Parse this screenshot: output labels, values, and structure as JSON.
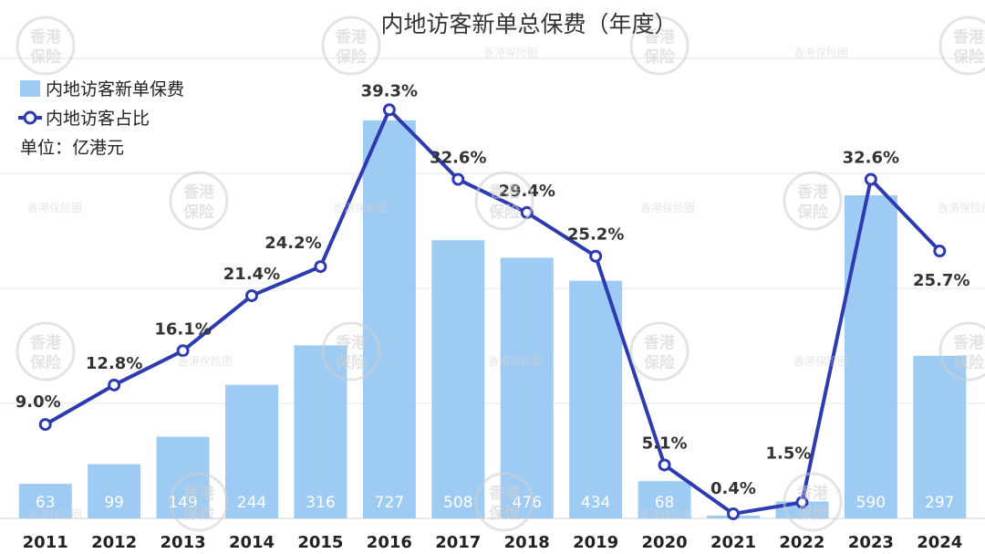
{
  "chart_data": {
    "type": "bar",
    "title": "内地访客新单总保费（年度）",
    "unit_label": "单位：亿港元",
    "categories": [
      "2011",
      "2012",
      "2013",
      "2014",
      "2015",
      "2016",
      "2017",
      "2018",
      "2019",
      "2020",
      "2021",
      "2022",
      "2023",
      "2024"
    ],
    "series": [
      {
        "name": "内地访客新单保费",
        "type": "bar",
        "values": [
          63,
          99,
          149,
          244,
          316,
          727,
          508,
          476,
          434,
          68,
          5,
          31,
          590,
          297
        ],
        "value_labels": [
          "63",
          "99",
          "149",
          "244",
          "316",
          "727",
          "508",
          "476",
          "434",
          "68",
          "",
          "",
          "590",
          "297"
        ],
        "color": "#9ecbf3"
      },
      {
        "name": "内地访客占比",
        "type": "line",
        "values": [
          9.0,
          12.8,
          16.1,
          21.4,
          24.2,
          39.3,
          32.6,
          29.4,
          25.2,
          5.1,
          0.4,
          1.5,
          32.6,
          25.7
        ],
        "value_labels": [
          "9.0%",
          "12.8%",
          "16.1%",
          "21.4%",
          "24.2%",
          "39.3%",
          "32.6%",
          "29.4%",
          "25.2%",
          "5.1%",
          "0.4%",
          "1.5%",
          "32.6%",
          "25.7%"
        ],
        "color": "#2e3bb0"
      }
    ],
    "grid": true,
    "legend_position": "top-left"
  },
  "watermark": {
    "seal_text": [
      "香港",
      "保险"
    ],
    "small_text": "香港保险圈"
  }
}
